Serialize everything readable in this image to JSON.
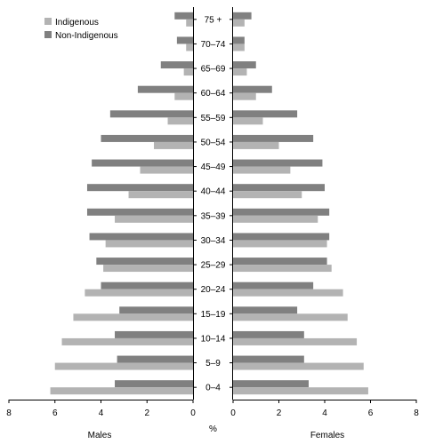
{
  "chart_data": {
    "type": "bar",
    "orientation": "horizontal",
    "layout": "population-pyramid",
    "categories": [
      "0–4",
      "5–9",
      "10–14",
      "15–19",
      "20–24",
      "25–29",
      "30–34",
      "35–39",
      "40–44",
      "45–49",
      "50–54",
      "55–59",
      "60–64",
      "65–69",
      "70–74",
      "75 +"
    ],
    "series": [
      {
        "name": "Indigenous",
        "color": "#b3b3b3",
        "males": [
          6.2,
          6.0,
          5.7,
          5.2,
          4.7,
          3.9,
          3.8,
          3.4,
          2.8,
          2.3,
          1.7,
          1.1,
          0.8,
          0.4,
          0.3,
          0.3
        ],
        "females": [
          5.9,
          5.7,
          5.4,
          5.0,
          4.8,
          4.3,
          4.1,
          3.7,
          3.0,
          2.5,
          2.0,
          1.3,
          1.0,
          0.6,
          0.5,
          0.5
        ]
      },
      {
        "name": "Non-Indigenous",
        "color": "#808080",
        "males": [
          3.4,
          3.3,
          3.4,
          3.2,
          4.0,
          4.2,
          4.5,
          4.6,
          4.6,
          4.4,
          4.0,
          3.6,
          2.4,
          1.4,
          0.7,
          0.8
        ],
        "females": [
          3.3,
          3.1,
          3.1,
          2.8,
          3.5,
          4.1,
          4.2,
          4.2,
          4.0,
          3.9,
          3.5,
          2.8,
          1.7,
          1.0,
          0.5,
          0.8
        ]
      }
    ],
    "xlim": [
      0,
      8
    ],
    "ticks": [
      8,
      6,
      4,
      2,
      0,
      2,
      4,
      6,
      8
    ],
    "xlabel": "%",
    "left_label": "Males",
    "right_label": "Females",
    "legend_position": "top-left",
    "grid": false
  }
}
